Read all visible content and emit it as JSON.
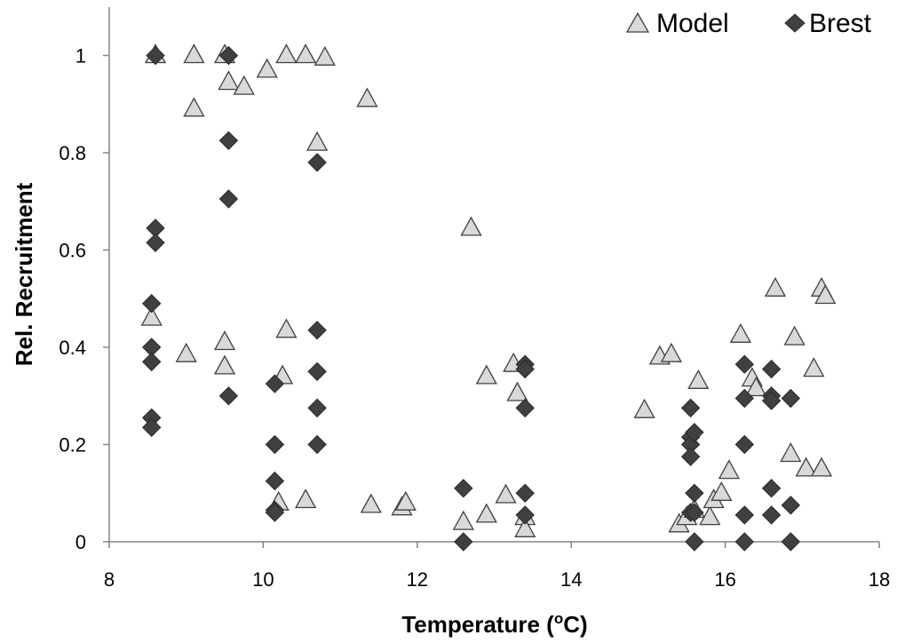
{
  "chart_data": {
    "type": "scatter",
    "title": "",
    "xlabel": "Temperature (",
    "xlabel_sup": "o",
    "xlabel_suffix": "C)",
    "ylabel": "Rel. Recruitment",
    "xlim": [
      8,
      18
    ],
    "ylim": [
      0,
      1.05
    ],
    "xticks": [
      8,
      10,
      12,
      14,
      16,
      18
    ],
    "yticks": [
      0,
      0.2,
      0.4,
      0.6,
      0.8,
      1
    ],
    "ytick_labels": [
      "0",
      "0.2",
      "0.4",
      "0.6",
      "0.8",
      "1"
    ],
    "grid": false,
    "legend_position": "top-right",
    "series": [
      {
        "name": "Model",
        "marker": "triangle",
        "color": "#d9d9d9",
        "stroke": "#404040",
        "points": [
          [
            8.6,
            1.0
          ],
          [
            9.1,
            1.0
          ],
          [
            9.5,
            1.0
          ],
          [
            9.55,
            0.945
          ],
          [
            9.75,
            0.935
          ],
          [
            9.1,
            0.89
          ],
          [
            10.05,
            0.97
          ],
          [
            10.3,
            1.0
          ],
          [
            10.55,
            1.0
          ],
          [
            10.8,
            0.995
          ],
          [
            10.7,
            0.82
          ],
          [
            11.35,
            0.91
          ],
          [
            12.7,
            0.645
          ],
          [
            8.55,
            0.46
          ],
          [
            9.0,
            0.385
          ],
          [
            9.5,
            0.41
          ],
          [
            9.5,
            0.36
          ],
          [
            10.3,
            0.435
          ],
          [
            10.25,
            0.34
          ],
          [
            10.2,
            0.08
          ],
          [
            10.55,
            0.085
          ],
          [
            11.4,
            0.075
          ],
          [
            11.8,
            0.07
          ],
          [
            11.85,
            0.08
          ],
          [
            12.9,
            0.34
          ],
          [
            13.25,
            0.365
          ],
          [
            13.3,
            0.305
          ],
          [
            12.6,
            0.04
          ],
          [
            12.9,
            0.055
          ],
          [
            13.15,
            0.095
          ],
          [
            13.4,
            0.05
          ],
          [
            13.4,
            0.025
          ],
          [
            14.95,
            0.27
          ],
          [
            15.15,
            0.38
          ],
          [
            15.3,
            0.385
          ],
          [
            15.65,
            0.33
          ],
          [
            15.4,
            0.035
          ],
          [
            15.5,
            0.05
          ],
          [
            15.6,
            0.065
          ],
          [
            15.8,
            0.05
          ],
          [
            15.85,
            0.085
          ],
          [
            15.95,
            0.1
          ],
          [
            16.05,
            0.145
          ],
          [
            16.2,
            0.425
          ],
          [
            16.35,
            0.335
          ],
          [
            16.4,
            0.315
          ],
          [
            16.65,
            0.52
          ],
          [
            16.85,
            0.18
          ],
          [
            16.9,
            0.42
          ],
          [
            17.05,
            0.15
          ],
          [
            17.15,
            0.355
          ],
          [
            17.25,
            0.52
          ],
          [
            17.3,
            0.505
          ],
          [
            17.25,
            0.15
          ]
        ]
      },
      {
        "name": "Brest",
        "marker": "diamond",
        "color": "#404040",
        "stroke": "#2a2a2a",
        "points": [
          [
            8.6,
            1.0
          ],
          [
            9.55,
            1.0
          ],
          [
            9.55,
            0.825
          ],
          [
            9.55,
            0.705
          ],
          [
            10.7,
            0.78
          ],
          [
            8.6,
            0.645
          ],
          [
            8.6,
            0.615
          ],
          [
            8.55,
            0.49
          ],
          [
            8.55,
            0.4
          ],
          [
            8.55,
            0.37
          ],
          [
            8.55,
            0.255
          ],
          [
            8.55,
            0.235
          ],
          [
            9.55,
            0.3
          ],
          [
            10.15,
            0.325
          ],
          [
            10.15,
            0.2
          ],
          [
            10.15,
            0.125
          ],
          [
            10.15,
            0.065
          ],
          [
            10.15,
            0.06
          ],
          [
            10.7,
            0.435
          ],
          [
            10.7,
            0.35
          ],
          [
            10.7,
            0.275
          ],
          [
            10.7,
            0.2
          ],
          [
            12.6,
            0.11
          ],
          [
            12.6,
            0.0
          ],
          [
            13.4,
            0.365
          ],
          [
            13.4,
            0.355
          ],
          [
            13.4,
            0.275
          ],
          [
            13.4,
            0.1
          ],
          [
            13.4,
            0.055
          ],
          [
            15.55,
            0.275
          ],
          [
            15.55,
            0.215
          ],
          [
            15.55,
            0.2
          ],
          [
            15.55,
            0.175
          ],
          [
            15.6,
            0.225
          ],
          [
            15.6,
            0.1
          ],
          [
            15.55,
            0.06
          ],
          [
            15.6,
            0.06
          ],
          [
            15.6,
            0.0
          ],
          [
            16.25,
            0.365
          ],
          [
            16.25,
            0.295
          ],
          [
            16.25,
            0.2
          ],
          [
            16.25,
            0.055
          ],
          [
            16.25,
            0.0
          ],
          [
            16.6,
            0.355
          ],
          [
            16.6,
            0.3
          ],
          [
            16.6,
            0.29
          ],
          [
            16.6,
            0.11
          ],
          [
            16.6,
            0.055
          ],
          [
            16.85,
            0.295
          ],
          [
            16.85,
            0.075
          ],
          [
            16.85,
            0.0
          ]
        ]
      }
    ]
  }
}
